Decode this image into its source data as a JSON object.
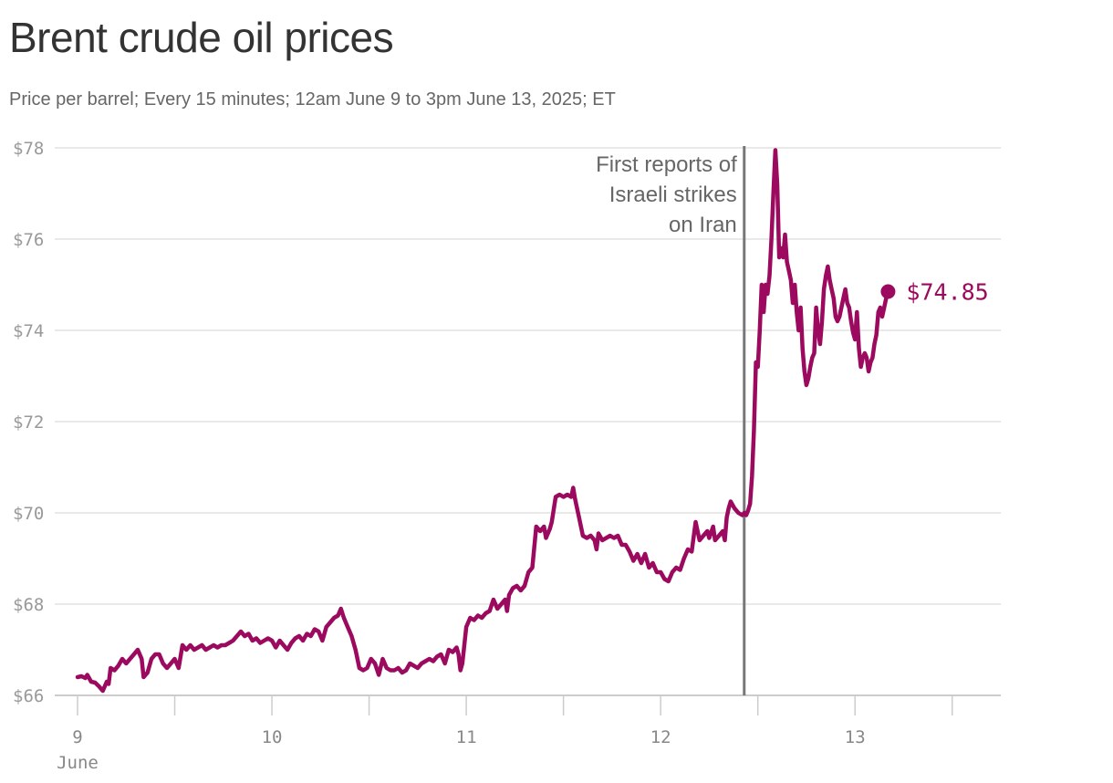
{
  "chart_data": {
    "type": "line",
    "title": "Brent crude oil prices",
    "subtitle": "Price per barrel; Every 15 minutes; 12am June 9 to 3pm June 13, 2025; ET",
    "xlabel": "",
    "ylabel": "",
    "ylim": [
      66,
      78
    ],
    "yticks": [
      66,
      68,
      70,
      72,
      74,
      76,
      78
    ],
    "ytick_labels": [
      "$66",
      "$68",
      "$70",
      "$72",
      "$74",
      "$76",
      "$78"
    ],
    "xlim": [
      0,
      4.75
    ],
    "xticks": [
      0,
      0.5,
      1,
      1.5,
      2,
      2.5,
      3,
      3.5,
      4,
      4.5
    ],
    "xtick_labels": [
      "9",
      "",
      "10",
      "",
      "11",
      "",
      "12",
      "",
      "13",
      ""
    ],
    "x_unit_label": "June",
    "grid": true,
    "color": "#9b0a5e",
    "series": [
      {
        "values": [
          [
            0.0,
            66.4
          ],
          [
            0.02,
            66.42
          ],
          [
            0.04,
            66.38
          ],
          [
            0.05,
            66.45
          ],
          [
            0.07,
            66.3
          ],
          [
            0.09,
            66.28
          ],
          [
            0.11,
            66.2
          ],
          [
            0.13,
            66.1
          ],
          [
            0.15,
            66.3
          ],
          [
            0.16,
            66.25
          ],
          [
            0.17,
            66.6
          ],
          [
            0.19,
            66.55
          ],
          [
            0.21,
            66.65
          ],
          [
            0.23,
            66.8
          ],
          [
            0.25,
            66.7
          ],
          [
            0.27,
            66.8
          ],
          [
            0.29,
            66.9
          ],
          [
            0.31,
            67.0
          ],
          [
            0.33,
            66.8
          ],
          [
            0.34,
            66.4
          ],
          [
            0.36,
            66.5
          ],
          [
            0.38,
            66.8
          ],
          [
            0.4,
            66.9
          ],
          [
            0.42,
            66.9
          ],
          [
            0.44,
            66.7
          ],
          [
            0.46,
            66.6
          ],
          [
            0.48,
            66.7
          ],
          [
            0.5,
            66.8
          ],
          [
            0.52,
            66.6
          ],
          [
            0.54,
            67.1
          ],
          [
            0.56,
            67.0
          ],
          [
            0.58,
            67.1
          ],
          [
            0.6,
            67.0
          ],
          [
            0.62,
            67.05
          ],
          [
            0.64,
            67.1
          ],
          [
            0.66,
            67.0
          ],
          [
            0.68,
            67.05
          ],
          [
            0.7,
            67.1
          ],
          [
            0.72,
            67.05
          ],
          [
            0.74,
            67.1
          ],
          [
            0.76,
            67.1
          ],
          [
            0.78,
            67.15
          ],
          [
            0.8,
            67.2
          ],
          [
            0.82,
            67.3
          ],
          [
            0.84,
            67.4
          ],
          [
            0.86,
            67.3
          ],
          [
            0.88,
            67.35
          ],
          [
            0.9,
            67.2
          ],
          [
            0.92,
            67.25
          ],
          [
            0.94,
            67.15
          ],
          [
            0.96,
            67.2
          ],
          [
            0.98,
            67.25
          ],
          [
            1.0,
            67.2
          ],
          [
            1.02,
            67.05
          ],
          [
            1.04,
            67.2
          ],
          [
            1.06,
            67.1
          ],
          [
            1.08,
            67.0
          ],
          [
            1.1,
            67.15
          ],
          [
            1.12,
            67.25
          ],
          [
            1.14,
            67.3
          ],
          [
            1.16,
            67.2
          ],
          [
            1.18,
            67.35
          ],
          [
            1.2,
            67.3
          ],
          [
            1.22,
            67.45
          ],
          [
            1.24,
            67.4
          ],
          [
            1.26,
            67.2
          ],
          [
            1.28,
            67.5
          ],
          [
            1.3,
            67.6
          ],
          [
            1.32,
            67.7
          ],
          [
            1.34,
            67.75
          ],
          [
            1.355,
            67.9
          ],
          [
            1.37,
            67.7
          ],
          [
            1.39,
            67.5
          ],
          [
            1.41,
            67.3
          ],
          [
            1.43,
            67.0
          ],
          [
            1.45,
            66.6
          ],
          [
            1.47,
            66.55
          ],
          [
            1.49,
            66.6
          ],
          [
            1.51,
            66.8
          ],
          [
            1.53,
            66.7
          ],
          [
            1.55,
            66.45
          ],
          [
            1.57,
            66.8
          ],
          [
            1.59,
            66.6
          ],
          [
            1.61,
            66.55
          ],
          [
            1.63,
            66.55
          ],
          [
            1.65,
            66.6
          ],
          [
            1.67,
            66.5
          ],
          [
            1.69,
            66.55
          ],
          [
            1.71,
            66.7
          ],
          [
            1.73,
            66.65
          ],
          [
            1.75,
            66.6
          ],
          [
            1.77,
            66.7
          ],
          [
            1.79,
            66.75
          ],
          [
            1.81,
            66.8
          ],
          [
            1.83,
            66.75
          ],
          [
            1.85,
            66.85
          ],
          [
            1.87,
            66.9
          ],
          [
            1.89,
            66.7
          ],
          [
            1.91,
            67.0
          ],
          [
            1.93,
            66.95
          ],
          [
            1.95,
            67.05
          ],
          [
            1.96,
            66.9
          ],
          [
            1.97,
            66.55
          ],
          [
            1.98,
            66.7
          ],
          [
            2.0,
            67.5
          ],
          [
            2.02,
            67.7
          ],
          [
            2.04,
            67.65
          ],
          [
            2.06,
            67.75
          ],
          [
            2.08,
            67.7
          ],
          [
            2.1,
            67.8
          ],
          [
            2.12,
            67.85
          ],
          [
            2.14,
            68.1
          ],
          [
            2.16,
            67.9
          ],
          [
            2.18,
            68.0
          ],
          [
            2.2,
            68.1
          ],
          [
            2.21,
            67.85
          ],
          [
            2.22,
            68.2
          ],
          [
            2.24,
            68.35
          ],
          [
            2.26,
            68.4
          ],
          [
            2.28,
            68.3
          ],
          [
            2.3,
            68.4
          ],
          [
            2.32,
            68.7
          ],
          [
            2.34,
            68.8
          ],
          [
            2.36,
            69.7
          ],
          [
            2.38,
            69.6
          ],
          [
            2.4,
            69.7
          ],
          [
            2.41,
            69.45
          ],
          [
            2.43,
            69.65
          ],
          [
            2.44,
            69.8
          ],
          [
            2.46,
            70.35
          ],
          [
            2.48,
            70.4
          ],
          [
            2.5,
            70.35
          ],
          [
            2.52,
            70.4
          ],
          [
            2.54,
            70.35
          ],
          [
            2.55,
            70.55
          ],
          [
            2.56,
            70.3
          ],
          [
            2.58,
            69.9
          ],
          [
            2.6,
            69.5
          ],
          [
            2.62,
            69.45
          ],
          [
            2.64,
            69.5
          ],
          [
            2.66,
            69.4
          ],
          [
            2.67,
            69.2
          ],
          [
            2.68,
            69.55
          ],
          [
            2.7,
            69.4
          ],
          [
            2.72,
            69.45
          ],
          [
            2.74,
            69.5
          ],
          [
            2.76,
            69.45
          ],
          [
            2.78,
            69.5
          ],
          [
            2.8,
            69.3
          ],
          [
            2.82,
            69.3
          ],
          [
            2.84,
            69.15
          ],
          [
            2.86,
            68.95
          ],
          [
            2.88,
            69.1
          ],
          [
            2.9,
            68.9
          ],
          [
            2.92,
            69.1
          ],
          [
            2.94,
            68.8
          ],
          [
            2.96,
            68.9
          ],
          [
            2.98,
            68.7
          ],
          [
            3.0,
            68.7
          ],
          [
            3.02,
            68.55
          ],
          [
            3.04,
            68.5
          ],
          [
            3.06,
            68.7
          ],
          [
            3.08,
            68.8
          ],
          [
            3.1,
            68.75
          ],
          [
            3.12,
            69.0
          ],
          [
            3.14,
            69.2
          ],
          [
            3.16,
            69.15
          ],
          [
            3.18,
            69.8
          ],
          [
            3.2,
            69.4
          ],
          [
            3.22,
            69.5
          ],
          [
            3.24,
            69.6
          ],
          [
            3.25,
            69.45
          ],
          [
            3.27,
            69.7
          ],
          [
            3.28,
            69.4
          ],
          [
            3.3,
            69.5
          ],
          [
            3.32,
            69.6
          ],
          [
            3.33,
            69.4
          ],
          [
            3.34,
            69.9
          ],
          [
            3.35,
            70.1
          ],
          [
            3.36,
            70.25
          ],
          [
            3.38,
            70.1
          ],
          [
            3.4,
            70.0
          ],
          [
            3.42,
            69.95
          ],
          [
            3.43,
            70.0
          ],
          [
            3.44,
            69.95
          ],
          [
            3.45,
            70.05
          ],
          [
            3.46,
            70.2
          ],
          [
            3.47,
            70.8
          ],
          [
            3.48,
            71.8
          ],
          [
            3.49,
            73.3
          ],
          [
            3.5,
            73.2
          ],
          [
            3.51,
            74.0
          ],
          [
            3.52,
            75.0
          ],
          [
            3.53,
            74.4
          ],
          [
            3.54,
            75.0
          ],
          [
            3.55,
            74.8
          ],
          [
            3.56,
            75.2
          ],
          [
            3.57,
            76.0
          ],
          [
            3.58,
            77.0
          ],
          [
            3.59,
            77.95
          ],
          [
            3.6,
            77.2
          ],
          [
            3.61,
            75.6
          ],
          [
            3.62,
            75.8
          ],
          [
            3.63,
            75.6
          ],
          [
            3.64,
            76.1
          ],
          [
            3.65,
            75.5
          ],
          [
            3.66,
            75.3
          ],
          [
            3.67,
            75.1
          ],
          [
            3.68,
            74.6
          ],
          [
            3.69,
            75.0
          ],
          [
            3.7,
            74.4
          ],
          [
            3.71,
            74.0
          ],
          [
            3.72,
            74.5
          ],
          [
            3.73,
            73.6
          ],
          [
            3.74,
            73.1
          ],
          [
            3.75,
            72.8
          ],
          [
            3.76,
            72.95
          ],
          [
            3.77,
            73.2
          ],
          [
            3.78,
            73.4
          ],
          [
            3.79,
            73.5
          ],
          [
            3.8,
            74.5
          ],
          [
            3.81,
            74.0
          ],
          [
            3.82,
            73.7
          ],
          [
            3.83,
            74.2
          ],
          [
            3.84,
            74.9
          ],
          [
            3.85,
            75.2
          ],
          [
            3.86,
            75.4
          ],
          [
            3.87,
            75.1
          ],
          [
            3.88,
            74.9
          ],
          [
            3.89,
            74.7
          ],
          [
            3.9,
            74.3
          ],
          [
            3.91,
            74.2
          ],
          [
            3.92,
            74.3
          ],
          [
            3.93,
            74.5
          ],
          [
            3.94,
            74.7
          ],
          [
            3.95,
            74.9
          ],
          [
            3.96,
            74.6
          ],
          [
            3.97,
            74.5
          ],
          [
            3.98,
            74.2
          ],
          [
            3.99,
            73.95
          ],
          [
            4.0,
            73.8
          ],
          [
            4.01,
            74.4
          ],
          [
            4.02,
            73.6
          ],
          [
            4.03,
            73.2
          ],
          [
            4.04,
            73.4
          ],
          [
            4.05,
            73.5
          ],
          [
            4.06,
            73.4
          ],
          [
            4.07,
            73.1
          ],
          [
            4.08,
            73.3
          ],
          [
            4.09,
            73.4
          ],
          [
            4.1,
            73.7
          ],
          [
            4.11,
            73.9
          ],
          [
            4.12,
            74.4
          ],
          [
            4.13,
            74.5
          ],
          [
            4.14,
            74.3
          ],
          [
            4.15,
            74.5
          ],
          [
            4.16,
            74.7
          ],
          [
            4.17,
            74.85
          ]
        ]
      }
    ],
    "end_label": "$74.85",
    "annotation": {
      "x": 3.43,
      "lines": [
        "First reports of",
        "Israeli strikes",
        "on Iran"
      ],
      "color": "#777777"
    }
  }
}
